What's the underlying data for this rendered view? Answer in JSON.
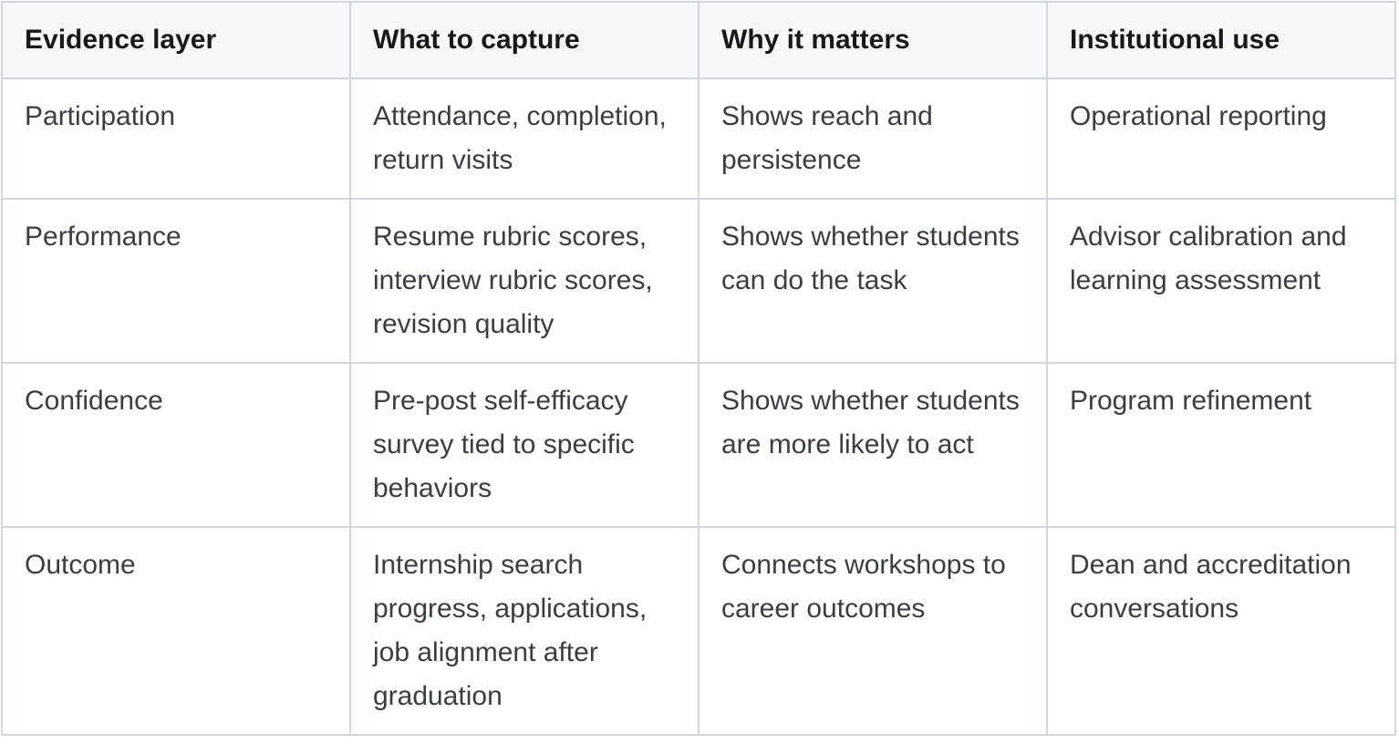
{
  "colors": {
    "border": "#d0d6dd",
    "header_bg": "#f6f8fa",
    "header_text": "#17191d",
    "body_text": "#3a3e44",
    "body_bg": "#ffffff"
  },
  "table": {
    "columns": [
      "Evidence layer",
      "What to capture",
      "Why it matters",
      "Institutional use"
    ],
    "rows": [
      {
        "cells": [
          "Participation",
          "Attendance, completion, return visits",
          "Shows reach and persistence",
          "Operational reporting"
        ]
      },
      {
        "cells": [
          "Performance",
          "Resume rubric scores, interview rubric scores, revision quality",
          "Shows whether students can do the task",
          "Advisor calibration and learning assessment"
        ]
      },
      {
        "cells": [
          "Confidence",
          "Pre-post self-efficacy survey tied to specific behaviors",
          "Shows whether students are more likely to act",
          "Program refinement"
        ]
      },
      {
        "cells": [
          "Outcome",
          "Internship search progress, applications, job alignment after graduation",
          "Connects workshops to career outcomes",
          "Dean and accreditation conversations"
        ]
      }
    ]
  }
}
